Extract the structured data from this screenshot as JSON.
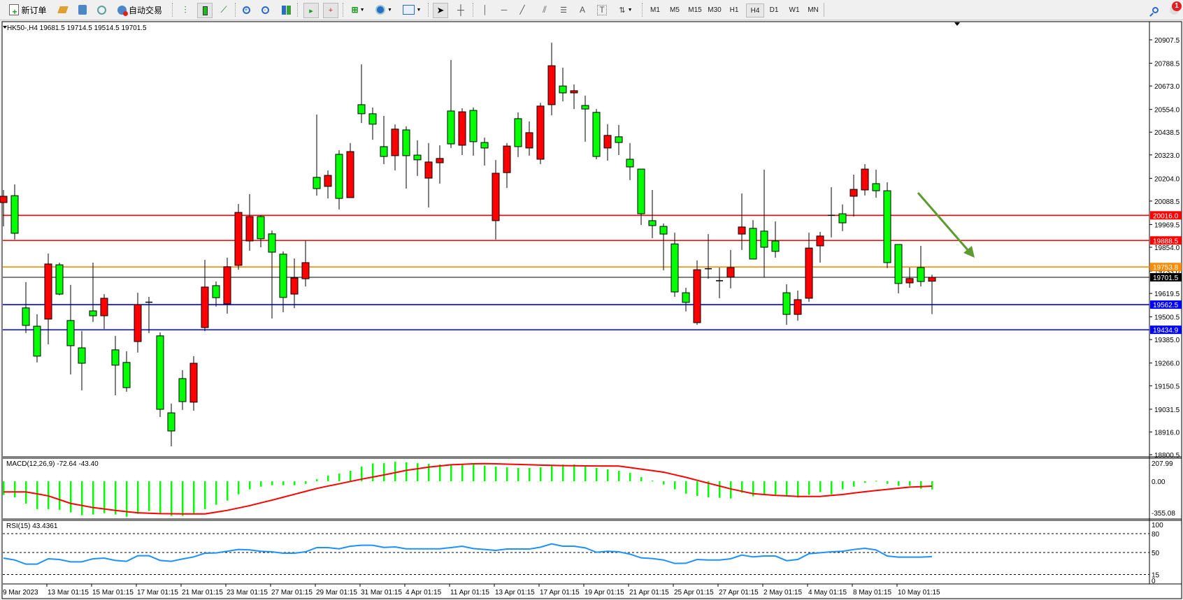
{
  "toolbar": {
    "new_order": "新订单",
    "auto_trading": "自动交易",
    "timeframes": [
      "M1",
      "M5",
      "M15",
      "M30",
      "H1",
      "H4",
      "D1",
      "W1",
      "MN"
    ],
    "active_timeframe": "H4",
    "notification_count": "1",
    "icons": [
      "new-order-icon",
      "history-icon",
      "market-watch-icon",
      "signals-icon",
      "auto-trading-icon",
      "bar-chart-icon",
      "candlestick-icon",
      "line-chart-icon",
      "zoom-in-icon",
      "zoom-out-icon",
      "tile-windows-icon",
      "auto-scroll-icon",
      "chart-shift-icon",
      "indicators-icon",
      "periods-icon",
      "templates-icon",
      "cursor-icon",
      "crosshair-icon",
      "vertical-line-icon",
      "horizontal-line-icon",
      "trendline-icon",
      "equidistant-channel-icon",
      "fibonacci-icon",
      "text-icon",
      "text-label-icon",
      "arrows-icon",
      "search-icon",
      "notification-icon"
    ]
  },
  "chart": {
    "header": "HK50-,H4  19681.5 19714.5 19514.5 19701.5",
    "macd_label": "MACD(12,26,9) -72.64 -43.40",
    "rsi_label": "RSI(15) 43.4361"
  },
  "chart_data": {
    "type": "candlestick",
    "symbol": "HK50-",
    "timeframe": "H4",
    "colors": {
      "up": "#ff0000",
      "down": "#00ff00",
      "wick": "#000000",
      "macd_hist": "#00ff00",
      "macd_signal": "#ff0000",
      "rsi": "#1e90ff",
      "arrow": "#5b9b2f"
    },
    "ylim": [
      18800.5,
      20907.5
    ],
    "price_ticks": [
      "20907.5",
      "20788.5",
      "20673.0",
      "20554.0",
      "20438.5",
      "20323.0",
      "20204.0",
      "20088.5",
      "19969.5",
      "19854.0",
      "19733.0",
      "19619.5",
      "19500.5",
      "19385.0",
      "19266.0",
      "19150.5",
      "19031.5",
      "18916.0",
      "18800.5"
    ],
    "ohlc_order": [
      "open",
      "high",
      "low",
      "close"
    ],
    "ohlc": [
      [
        20081,
        20145,
        19960,
        20113
      ],
      [
        20116,
        20173,
        19893,
        19925
      ],
      [
        19546,
        19677,
        19418,
        19457
      ],
      [
        19453,
        19514,
        19269,
        19301
      ],
      [
        19489,
        19822,
        19361,
        19769
      ],
      [
        19765,
        19776,
        19610,
        19616
      ],
      [
        19482,
        19663,
        19208,
        19354
      ],
      [
        19343,
        19429,
        19127,
        19265
      ],
      [
        19531,
        19776,
        19475,
        19506
      ],
      [
        19506,
        19616,
        19439,
        19595
      ],
      [
        19333,
        19404,
        19102,
        19255
      ],
      [
        19269,
        19326,
        19120,
        19141
      ],
      [
        19375,
        19623,
        19319,
        19563
      ],
      [
        19570,
        19602,
        19418,
        19575
      ],
      [
        19404,
        19422,
        18992,
        19031
      ],
      [
        19013,
        19060,
        18843,
        18921
      ],
      [
        19187,
        19230,
        19028,
        19070
      ],
      [
        19067,
        19301,
        19024,
        19265
      ],
      [
        19446,
        19790,
        19428,
        19652
      ],
      [
        19659,
        19680,
        19553,
        19598
      ],
      [
        19567,
        19801,
        19517,
        19755
      ],
      [
        19762,
        20074,
        19740,
        20031
      ],
      [
        19886,
        20124,
        19836,
        20010
      ],
      [
        20010,
        20017,
        19854,
        19897
      ],
      [
        19922,
        19939,
        19492,
        19829
      ],
      [
        19819,
        19833,
        19524,
        19599
      ],
      [
        19616,
        19797,
        19545,
        19698
      ],
      [
        19694,
        19889,
        19655,
        19776
      ],
      [
        20209,
        20528,
        20116,
        20152
      ],
      [
        20163,
        20244,
        20102,
        20219
      ],
      [
        20326,
        20347,
        20046,
        20102
      ],
      [
        20106,
        20383,
        20106,
        20340
      ],
      [
        20578,
        20783,
        20485,
        20532
      ],
      [
        20532,
        20564,
        20400,
        20479
      ],
      [
        20365,
        20521,
        20276,
        20315
      ],
      [
        20319,
        20478,
        20244,
        20454
      ],
      [
        20450,
        20468,
        20152,
        20319
      ],
      [
        20322,
        20397,
        20216,
        20298
      ],
      [
        20205,
        20383,
        20056,
        20287
      ],
      [
        20283,
        20372,
        20177,
        20305
      ],
      [
        20546,
        20805,
        20358,
        20379
      ],
      [
        20372,
        20560,
        20322,
        20542
      ],
      [
        20549,
        20564,
        20319,
        20390
      ],
      [
        20386,
        20411,
        20269,
        20358
      ],
      [
        19989,
        20297,
        19893,
        20230
      ],
      [
        20233,
        20383,
        20155,
        20368
      ],
      [
        20507,
        20539,
        20312,
        20365
      ],
      [
        20358,
        20493,
        20319,
        20436
      ],
      [
        20301,
        20588,
        20276,
        20571
      ],
      [
        20578,
        20893,
        20524,
        20776
      ],
      [
        20673,
        20766,
        20595,
        20638
      ],
      [
        20638,
        20681,
        20556,
        20649
      ],
      [
        20574,
        20624,
        20390,
        20556
      ],
      [
        20539,
        20556,
        20301,
        20315
      ],
      [
        20358,
        20479,
        20294,
        20422
      ],
      [
        20415,
        20475,
        20322,
        20386
      ],
      [
        20301,
        20383,
        20195,
        20262
      ],
      [
        20251,
        20251,
        19967,
        20024
      ],
      [
        19989,
        20145,
        19900,
        19964
      ],
      [
        19960,
        19975,
        19737,
        19921
      ],
      [
        19871,
        19928,
        19602,
        19627
      ],
      [
        19623,
        19648,
        19528,
        19574
      ],
      [
        19471,
        19787,
        19460,
        19740
      ],
      [
        19741,
        19921,
        19694,
        19745
      ],
      [
        19684,
        19751,
        19595,
        19684
      ],
      [
        19702,
        19840,
        19645,
        19751
      ],
      [
        19921,
        20127,
        19840,
        19957
      ],
      [
        19950,
        19992,
        19794,
        19794
      ],
      [
        19936,
        20248,
        19702,
        19854
      ],
      [
        19886,
        19985,
        19801,
        19833
      ],
      [
        19623,
        19666,
        19460,
        19513
      ],
      [
        19513,
        19634,
        19481,
        19588
      ],
      [
        19595,
        19928,
        19577,
        19850
      ],
      [
        19861,
        19932,
        19776,
        19911
      ],
      [
        20013,
        20159,
        19904,
        20016
      ],
      [
        20024,
        20071,
        19936,
        19978
      ],
      [
        20113,
        20223,
        20010,
        20148
      ],
      [
        20145,
        20276,
        20117,
        20251
      ],
      [
        20177,
        20248,
        20106,
        20141
      ],
      [
        20141,
        20184,
        19748,
        19776
      ],
      [
        19868,
        19868,
        19620,
        19670
      ],
      [
        19673,
        19751,
        19648,
        19695
      ],
      [
        19751,
        19861,
        19655,
        19680
      ],
      [
        19681.5,
        19714.5,
        19514.5,
        19701.5
      ]
    ],
    "horizontal_lines": [
      {
        "price": 20016.0,
        "label": "20016.0",
        "color": "#ff0000"
      },
      {
        "price": 19888.5,
        "label": "19888.5",
        "color": "#ff0000"
      },
      {
        "price": 19753.8,
        "label": "19753.8",
        "color": "#ff8c00"
      },
      {
        "price": 19701.5,
        "label": "19701.5",
        "color": "#000000"
      },
      {
        "price": 19562.5,
        "label": "19562.5",
        "color": "#0000ff"
      },
      {
        "price": 19434.9,
        "label": "19434.9",
        "color": "#0000ff"
      }
    ],
    "annotation": "down-arrow",
    "x_labels": [
      "9 Mar 2023",
      "13 Mar 01:15",
      "15 Mar 01:15",
      "17 Mar 01:15",
      "21 Mar 01:15",
      "23 Mar 01:15",
      "27 Mar 01:15",
      "29 Mar 01:15",
      "31 Mar 01:15",
      "4 Apr 01:15",
      "11 Apr 01:15",
      "13 Apr 01:15",
      "17 Apr 01:15",
      "19 Apr 01:15",
      "21 Apr 01:15",
      "25 Apr 01:15",
      "27 Apr 01:15",
      "2 May 01:15",
      "4 May 01:15",
      "8 May 01:15",
      "10 May 01:15"
    ],
    "x_label_every_n_bars": 4,
    "macd": {
      "params": "12,26,9",
      "range": [
        -355.08,
        207.99
      ],
      "ticks": [
        "207.99",
        "0.00",
        "-355.08"
      ],
      "histogram": [
        -122,
        -143,
        -199,
        -248,
        -248,
        -254,
        -277,
        -302,
        -296,
        -284,
        -296,
        -315,
        -290,
        -265,
        -284,
        -308,
        -308,
        -285,
        -248,
        -209,
        -172,
        -116,
        -72,
        -48,
        -35,
        -35,
        -35,
        -23,
        18,
        50,
        68,
        93,
        130,
        159,
        161,
        174,
        168,
        161,
        155,
        149,
        149,
        149,
        149,
        140,
        130,
        124,
        118,
        118,
        124,
        137,
        149,
        149,
        143,
        118,
        106,
        93,
        75,
        37,
        6,
        -29,
        -72,
        -110,
        -130,
        -143,
        -147,
        -153,
        -102,
        -134,
        -122,
        -122,
        -134,
        -145,
        -122,
        -97,
        -116,
        -72,
        -48,
        -14,
        4,
        -23,
        -41,
        -41,
        -66,
        -72.64
      ],
      "signal": [
        -95,
        -95,
        -95,
        -112,
        -130,
        -163,
        -197,
        -215,
        -234,
        -246,
        -259,
        -270,
        -280,
        -284,
        -288,
        -289,
        -290,
        -290,
        -290,
        -275,
        -259,
        -238,
        -217,
        -192,
        -168,
        -142,
        -116,
        -90,
        -64,
        -43,
        -23,
        -2,
        19,
        37,
        56,
        76,
        97,
        111,
        126,
        136,
        147,
        151,
        155,
        157,
        155,
        152,
        150,
        147,
        144,
        141,
        139,
        138,
        137,
        136,
        136,
        135,
        122,
        108,
        95,
        81,
        58,
        35,
        9,
        -17,
        -42,
        -68,
        -89,
        -110,
        -118,
        -126,
        -130,
        -135,
        -135,
        -135,
        -126,
        -118,
        -105,
        -93,
        -82,
        -72,
        -62,
        -52,
        -48,
        -43.4
      ]
    },
    "rsi": {
      "period": 15,
      "range": [
        0,
        100
      ],
      "ticks": [
        "100",
        "80",
        "50",
        "15",
        "0"
      ],
      "levels": [
        80,
        50,
        15
      ],
      "values": [
        41.1,
        38.1,
        31.5,
        31.5,
        40,
        38.9,
        35.2,
        35.2,
        40,
        41.1,
        37.4,
        36,
        44.9,
        44.9,
        37.4,
        36,
        39.7,
        43,
        48.9,
        49.3,
        51.9,
        54.8,
        54.1,
        51.9,
        51.1,
        48.9,
        48.9,
        51.1,
        57.8,
        57.8,
        55.9,
        60,
        61.5,
        61.5,
        58.1,
        58.9,
        55.9,
        55.9,
        55.9,
        55.9,
        57.8,
        60,
        56.3,
        54.8,
        53.3,
        55.5,
        55.5,
        55.5,
        58.5,
        63.7,
        60,
        60,
        57.4,
        50.4,
        51.9,
        51.1,
        47.4,
        41.5,
        40.4,
        38.1,
        32.6,
        32.9,
        38.9,
        38.1,
        38.1,
        40,
        45.9,
        43,
        44.4,
        44.4,
        37,
        38.9,
        48.1,
        49.6,
        51.1,
        51.9,
        54.8,
        56.7,
        54.1,
        44.4,
        42.6,
        42.6,
        42.6,
        43.4361
      ]
    }
  }
}
